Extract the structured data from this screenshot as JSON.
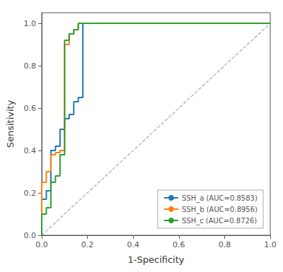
{
  "chart_data": {
    "type": "line",
    "xlabel": "1-Specificity",
    "ylabel": "Sensitivity",
    "xlim": [
      0.0,
      1.0
    ],
    "ylim": [
      0.0,
      1.05
    ],
    "xticks": [
      {
        "value": 0,
        "label": "0.0"
      },
      0.2,
      0.4,
      0.6,
      0.8,
      {
        "value": 1,
        "label": "1.0"
      }
    ],
    "yticks": [
      {
        "value": 0,
        "label": "0.0"
      },
      0.2,
      0.4,
      0.6,
      0.8,
      {
        "value": 1,
        "label": "1.0"
      }
    ],
    "grid": false,
    "legend": "lower right",
    "series": [
      {
        "name": "SSH_a (AUC=0.8583)",
        "color": "#1f77b4",
        "line_style": "solid",
        "x": [
          0.0,
          0.0,
          0.0,
          0.02,
          0.02,
          0.04,
          0.04,
          0.06,
          0.06,
          0.08,
          0.08,
          0.1,
          0.1,
          0.12,
          0.12,
          0.14,
          0.14,
          0.16,
          0.16,
          0.18,
          0.18,
          0.2,
          0.2,
          0.22,
          0.22,
          0.24,
          0.24,
          1.0
        ],
        "values": [
          0.0,
          0.15,
          0.17,
          0.17,
          0.21,
          0.21,
          0.4,
          0.4,
          0.42,
          0.42,
          0.5,
          0.5,
          0.55,
          0.55,
          0.57,
          0.57,
          0.63,
          0.63,
          0.65,
          0.65,
          1.0,
          1.0,
          1.0,
          1.0,
          1.0,
          1.0,
          1.0,
          1.0
        ]
      },
      {
        "name": "SSH_b (AUC=0.8956)",
        "color": "#ff7f0e",
        "line_style": "solid",
        "x": [
          0.0,
          0.0,
          0.0,
          0.02,
          0.02,
          0.04,
          0.04,
          0.06,
          0.06,
          0.08,
          0.08,
          0.1,
          0.1,
          0.12,
          0.12,
          0.14,
          0.14,
          0.16,
          0.16,
          0.18,
          0.18,
          1.0
        ],
        "values": [
          0.0,
          0.1,
          0.25,
          0.25,
          0.3,
          0.3,
          0.38,
          0.38,
          0.39,
          0.39,
          0.4,
          0.4,
          0.9,
          0.9,
          0.95,
          0.95,
          0.97,
          0.97,
          1.0,
          1.0,
          1.0,
          1.0
        ]
      },
      {
        "name": "SSH_c (AUC=0.8726)",
        "color": "#2ca02c",
        "line_style": "solid",
        "x": [
          0.0,
          0.0,
          0.0,
          0.02,
          0.02,
          0.04,
          0.04,
          0.06,
          0.06,
          0.08,
          0.08,
          0.1,
          0.1,
          0.12,
          0.12,
          0.14,
          0.14,
          0.16,
          0.16,
          0.2,
          0.2,
          0.22,
          0.22,
          1.0
        ],
        "values": [
          0.0,
          0.02,
          0.1,
          0.1,
          0.13,
          0.13,
          0.25,
          0.25,
          0.28,
          0.28,
          0.38,
          0.38,
          0.92,
          0.92,
          0.95,
          0.95,
          0.97,
          0.97,
          1.0,
          1.0,
          1.0,
          1.0,
          1.0,
          1.0
        ]
      },
      {
        "color": "#aaaaaa",
        "line_style": "dashed",
        "x": [
          0,
          1
        ],
        "values": [
          0,
          1
        ]
      }
    ]
  }
}
